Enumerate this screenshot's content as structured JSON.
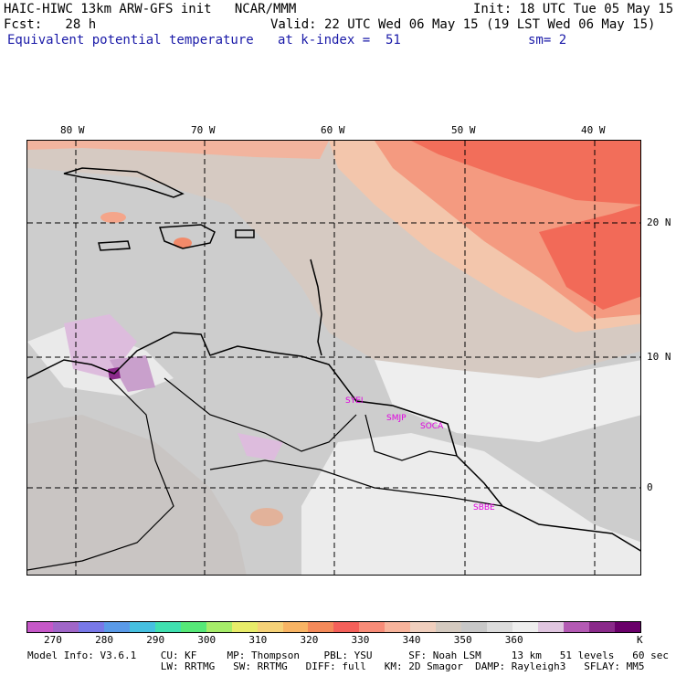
{
  "header": {
    "line1_left": "HAIC-HIWC 13km ARW-GFS init   NCAR/MMM",
    "line1_right": "Init: 18 UTC Tue 05 May 15",
    "line2_left": "Fcst:   28 h",
    "line2_right": "Valid: 22 UTC Wed 06 May 15 (19 LST Wed 06 May 15)",
    "line3_field": "Equivalent potential temperature",
    "line3_level": "at k-index =  51",
    "line3_smooth": "sm= 2"
  },
  "longitude_ticks": [
    "80 W",
    "70 W",
    "60 W",
    "50 W",
    "40 W"
  ],
  "latitude_ticks": [
    "20 N",
    "10 N",
    "0"
  ],
  "stations": [
    "SYEI",
    "SMJP",
    "SOCA",
    "SBBE"
  ],
  "colorbar": {
    "colors": [
      "#c658c8",
      "#a066c8",
      "#7878e8",
      "#5a9ae8",
      "#46c0e0",
      "#40e0b0",
      "#56e878",
      "#a6ec6a",
      "#e8ec6a",
      "#f6d278",
      "#f8b464",
      "#f48a5a",
      "#f4605a",
      "#f88c78",
      "#f8b49c",
      "#f0cfbe",
      "#d4cac0",
      "#c8c8c8",
      "#dcdcdc",
      "#eeeeee",
      "#e0c6e0",
      "#b45ab4",
      "#8a2a8a",
      "#6a006a"
    ],
    "labels": [
      "270",
      "280",
      "290",
      "300",
      "310",
      "320",
      "330",
      "340",
      "350",
      "360"
    ],
    "unit": "K"
  },
  "footer": {
    "line1": "Model Info: V3.6.1    CU: KF     MP: Thompson    PBL: YSU      SF: Noah LSM     13 km   51 levels   60 sec",
    "line2": "                      LW: RRTMG   SW: RRTMG   DIFF: full   KM: 2D Smagor  DAMP: Rayleigh3   SFLAY: MM5"
  }
}
